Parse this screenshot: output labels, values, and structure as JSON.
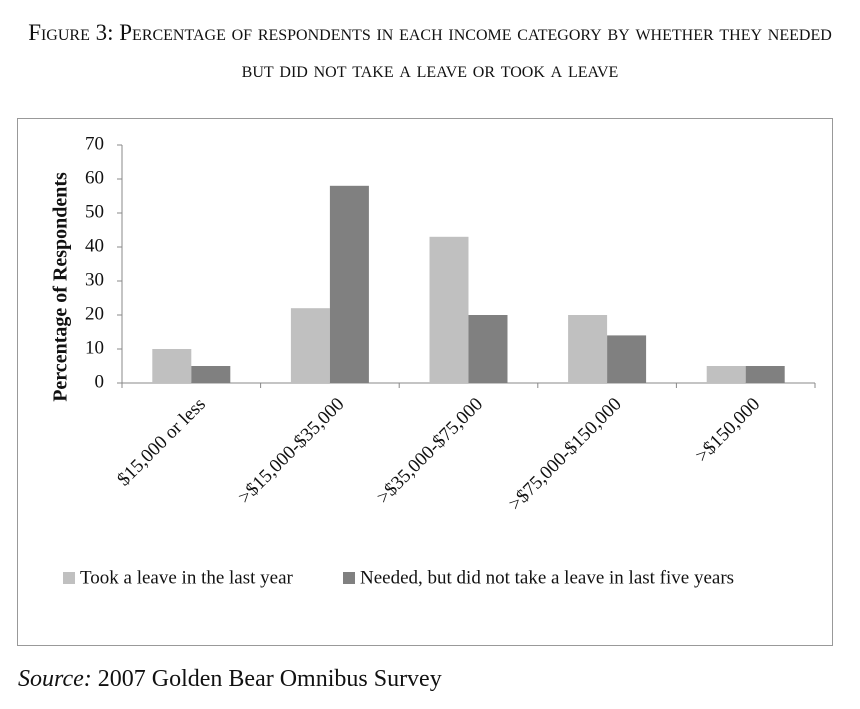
{
  "chart_data": {
    "type": "bar",
    "title": "Figure 3: Percentage of respondents in each income category by whether they needed but did not take a leave or took a leave",
    "ylabel": "Percentage of Respondents",
    "categories": [
      "$15,000 or less",
      ">$15,000-$35,000",
      ">$35,000-$75,000",
      ">$75,000-$150,000",
      ">$150,000"
    ],
    "series": [
      {
        "name": "Took a leave in the last year",
        "color": "#c0c0c0",
        "values": [
          10,
          22,
          43,
          20,
          5
        ]
      },
      {
        "name": "Needed, but did not take a leave in last five years",
        "color": "#808080",
        "values": [
          5,
          58,
          20,
          14,
          5
        ]
      }
    ],
    "ylim": [
      0,
      70
    ],
    "yticks": [
      0,
      10,
      20,
      30,
      40,
      50,
      60,
      70
    ],
    "grid": false,
    "legend": "bottom",
    "source_label": "Source:",
    "source": "2007 Golden Bear Omnibus Survey"
  }
}
